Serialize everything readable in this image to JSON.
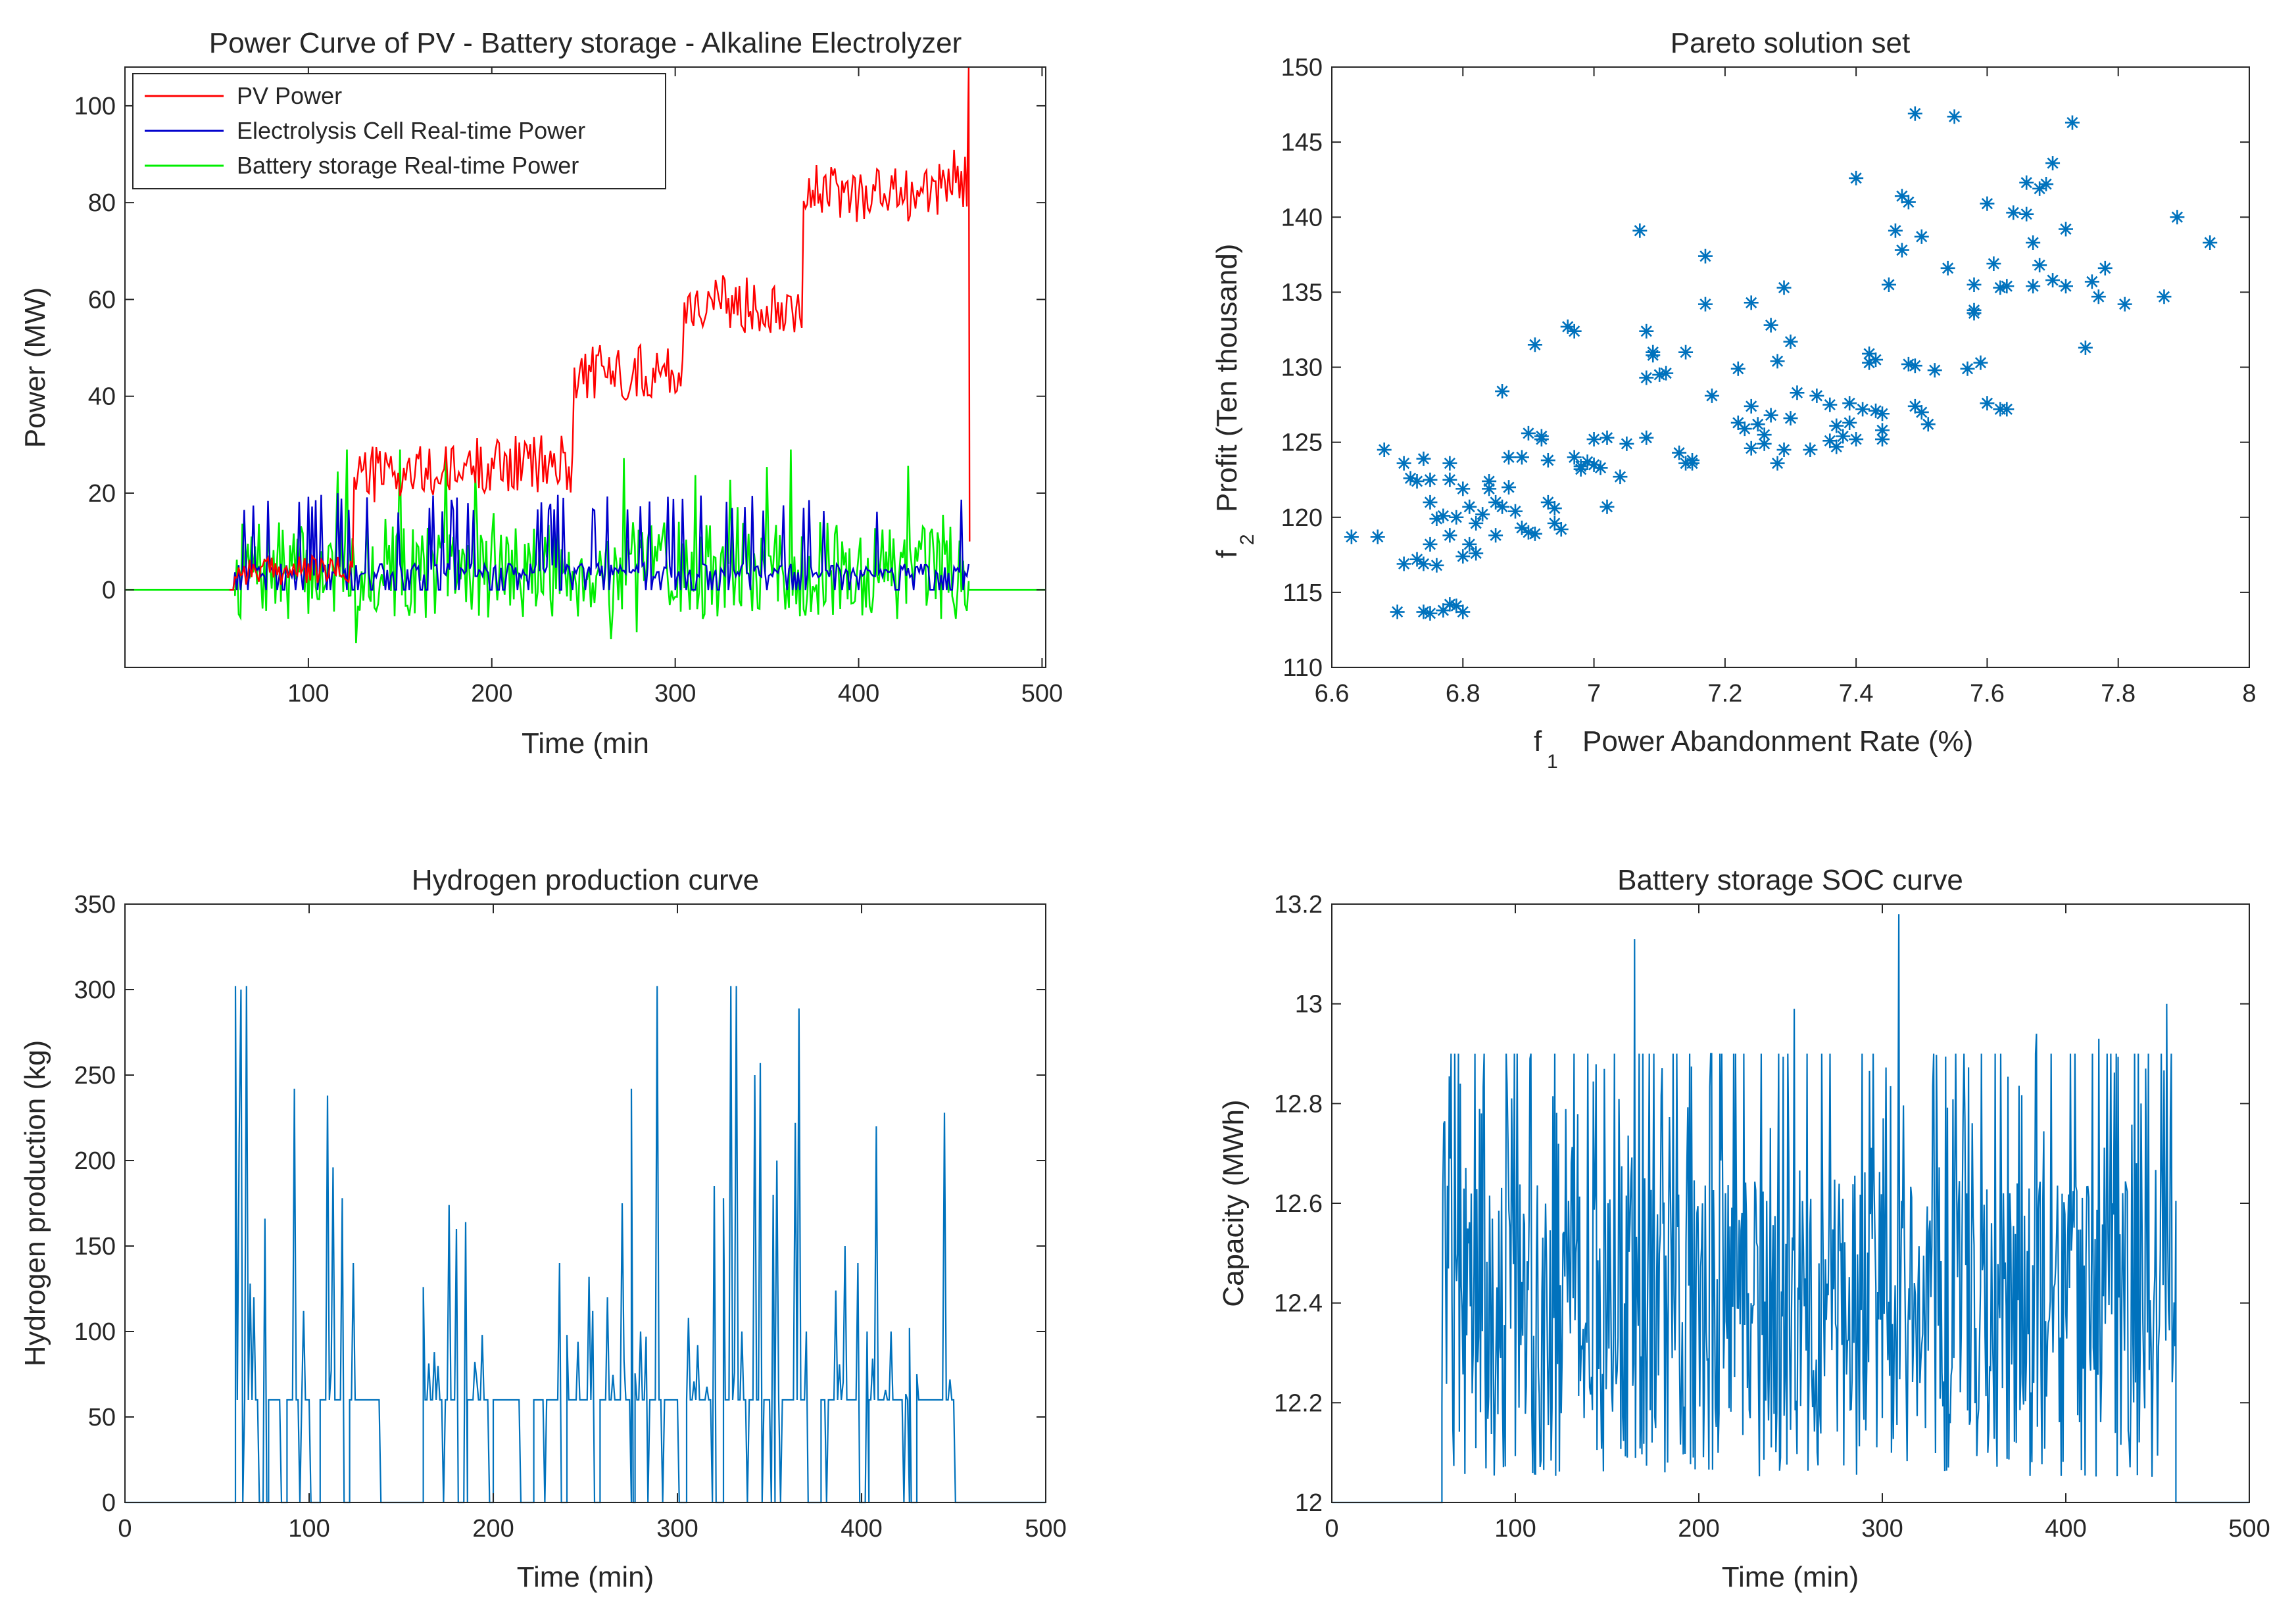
{
  "colors": {
    "pv": "#ff0000",
    "electrolysis": "#0000cc",
    "battery": "#00ee00",
    "matlab_blue": "#0072bd",
    "axis": "#262626"
  },
  "chart_data": [
    {
      "id": "power",
      "type": "line",
      "title": "Power Curve of PV - Battery storage - Alkaline Electrolyzer",
      "xlabel": "Time (min",
      "ylabel": "Power (MW)",
      "xlim": [
        0,
        502
      ],
      "ylim": [
        -16,
        108
      ],
      "xticks": [
        100,
        200,
        300,
        400,
        500
      ],
      "yticks": [
        0,
        20,
        40,
        60,
        80,
        100
      ],
      "legend": {
        "position": "top-left",
        "entries": [
          "PV Power",
          "Electrolysis Cell Real-time Power",
          "Battery storage Real-time Power"
        ]
      },
      "series": [
        {
          "name": "PV Power",
          "color": "#ff0000",
          "levels": [
            [
              57,
              0
            ],
            [
              60,
              4
            ],
            [
              125,
              24
            ],
            [
              185,
              26
            ],
            [
              245,
              45
            ],
            [
              305,
              59
            ],
            [
              370,
              82
            ],
            [
              430,
              82
            ],
            [
              445,
              85
            ],
            [
              459,
              85
            ]
          ],
          "noise": 6,
          "spike": [
            460,
            108
          ]
        },
        {
          "name": "Electrolysis Cell Real-time Power",
          "color": "#0000cc",
          "range": [
            57,
            460
          ],
          "base": 4,
          "high": 20,
          "probability": 0.12
        },
        {
          "name": "Battery storage Real-time Power",
          "color": "#00ee00",
          "range": [
            60,
            460
          ],
          "mean": 4,
          "spread": 10,
          "min": -16,
          "max": 29
        }
      ]
    },
    {
      "id": "pareto",
      "type": "scatter",
      "title": "Pareto solution set",
      "xlabel": "f",
      "xlabel_sub": "1",
      "xlabel_rest": "Power Abandonment Rate (%)",
      "ylabel": "f",
      "ylabel_sub": "2",
      "ylabel_rest": "Profit (Ten thousand)",
      "xlim": [
        6.6,
        8
      ],
      "ylim": [
        110,
        150
      ],
      "xticks": [
        6.6,
        6.8,
        7,
        7.2,
        7.4,
        7.6,
        7.8,
        8
      ],
      "yticks": [
        110,
        115,
        120,
        125,
        130,
        135,
        140,
        145,
        150
      ],
      "marker": "*",
      "points": [
        [
          6.63,
          118.7
        ],
        [
          6.67,
          118.7
        ],
        [
          6.68,
          124.5
        ],
        [
          6.7,
          113.7
        ],
        [
          6.71,
          116.9
        ],
        [
          6.71,
          123.6
        ],
        [
          6.72,
          122.6
        ],
        [
          6.73,
          122.4
        ],
        [
          6.73,
          117.2
        ],
        [
          6.74,
          113.7
        ],
        [
          6.74,
          116.9
        ],
        [
          6.74,
          123.9
        ],
        [
          6.75,
          113.6
        ],
        [
          6.75,
          118.2
        ],
        [
          6.75,
          121.0
        ],
        [
          6.75,
          122.5
        ],
        [
          6.76,
          116.8
        ],
        [
          6.76,
          119.9
        ],
        [
          6.77,
          113.8
        ],
        [
          6.77,
          120.1
        ],
        [
          6.78,
          114.2
        ],
        [
          6.78,
          118.8
        ],
        [
          6.78,
          122.5
        ],
        [
          6.78,
          123.6
        ],
        [
          6.79,
          114.1
        ],
        [
          6.79,
          120.0
        ],
        [
          6.8,
          117.4
        ],
        [
          6.8,
          121.9
        ],
        [
          6.8,
          113.7
        ],
        [
          6.81,
          120.7
        ],
        [
          6.81,
          118.2
        ],
        [
          6.82,
          117.6
        ],
        [
          6.82,
          119.6
        ],
        [
          6.83,
          120.2
        ],
        [
          6.84,
          121.9
        ],
        [
          6.84,
          122.4
        ],
        [
          6.85,
          118.8
        ],
        [
          6.85,
          121.0
        ],
        [
          6.86,
          120.7
        ],
        [
          6.86,
          128.4
        ],
        [
          6.87,
          122.0
        ],
        [
          6.87,
          124.0
        ],
        [
          6.88,
          120.4
        ],
        [
          6.89,
          119.3
        ],
        [
          6.89,
          124.0
        ],
        [
          6.9,
          119.0
        ],
        [
          6.9,
          125.6
        ],
        [
          6.91,
          118.9
        ],
        [
          6.91,
          131.5
        ],
        [
          6.92,
          125.4
        ],
        [
          6.92,
          125.2
        ],
        [
          6.93,
          123.8
        ],
        [
          6.93,
          121.0
        ],
        [
          6.94,
          119.6
        ],
        [
          6.94,
          120.6
        ],
        [
          6.95,
          119.2
        ],
        [
          6.96,
          132.7
        ],
        [
          6.97,
          132.4
        ],
        [
          6.97,
          124.0
        ],
        [
          6.98,
          123.4
        ],
        [
          6.98,
          123.2
        ],
        [
          6.99,
          123.7
        ],
        [
          7.0,
          123.5
        ],
        [
          7.0,
          125.2
        ],
        [
          7.01,
          123.3
        ],
        [
          7.02,
          125.3
        ],
        [
          7.02,
          120.7
        ],
        [
          7.04,
          122.7
        ],
        [
          7.05,
          124.9
        ],
        [
          7.07,
          139.1
        ],
        [
          7.08,
          125.3
        ],
        [
          7.08,
          132.4
        ],
        [
          7.08,
          129.3
        ],
        [
          7.09,
          130.8
        ],
        [
          7.09,
          131.0
        ],
        [
          7.1,
          129.5
        ],
        [
          7.11,
          129.6
        ],
        [
          7.13,
          124.3
        ],
        [
          7.14,
          123.6
        ],
        [
          7.14,
          131.0
        ],
        [
          7.15,
          123.6
        ],
        [
          7.15,
          123.8
        ],
        [
          7.17,
          137.4
        ],
        [
          7.17,
          134.2
        ],
        [
          7.18,
          128.1
        ],
        [
          7.22,
          129.9
        ],
        [
          7.22,
          126.3
        ],
        [
          7.23,
          125.9
        ],
        [
          7.24,
          124.6
        ],
        [
          7.24,
          134.3
        ],
        [
          7.24,
          127.4
        ],
        [
          7.25,
          126.2
        ],
        [
          7.26,
          125.5
        ],
        [
          7.26,
          124.9
        ],
        [
          7.27,
          132.8
        ],
        [
          7.27,
          126.8
        ],
        [
          7.28,
          130.4
        ],
        [
          7.28,
          123.6
        ],
        [
          7.29,
          135.3
        ],
        [
          7.29,
          124.5
        ],
        [
          7.3,
          131.7
        ],
        [
          7.3,
          126.6
        ],
        [
          7.31,
          128.3
        ],
        [
          7.33,
          124.5
        ],
        [
          7.34,
          128.1
        ],
        [
          7.36,
          125.1
        ],
        [
          7.36,
          127.5
        ],
        [
          7.37,
          126.1
        ],
        [
          7.37,
          124.7
        ],
        [
          7.38,
          125.4
        ],
        [
          7.39,
          127.6
        ],
        [
          7.39,
          126.3
        ],
        [
          7.4,
          125.2
        ],
        [
          7.4,
          142.6
        ],
        [
          7.41,
          127.2
        ],
        [
          7.42,
          130.9
        ],
        [
          7.42,
          130.3
        ],
        [
          7.43,
          130.5
        ],
        [
          7.43,
          127.1
        ],
        [
          7.44,
          126.9
        ],
        [
          7.44,
          125.8
        ],
        [
          7.44,
          125.2
        ],
        [
          7.45,
          135.5
        ],
        [
          7.46,
          139.1
        ],
        [
          7.47,
          141.4
        ],
        [
          7.47,
          137.8
        ],
        [
          7.48,
          141.0
        ],
        [
          7.48,
          130.2
        ],
        [
          7.49,
          130.1
        ],
        [
          7.49,
          127.4
        ],
        [
          7.49,
          146.9
        ],
        [
          7.5,
          138.7
        ],
        [
          7.5,
          127.0
        ],
        [
          7.51,
          126.2
        ],
        [
          7.52,
          129.8
        ],
        [
          7.54,
          136.6
        ],
        [
          7.55,
          146.7
        ],
        [
          7.57,
          129.9
        ],
        [
          7.58,
          133.8
        ],
        [
          7.58,
          133.6
        ],
        [
          7.58,
          135.5
        ],
        [
          7.59,
          130.3
        ],
        [
          7.6,
          127.6
        ],
        [
          7.6,
          140.9
        ],
        [
          7.61,
          136.9
        ],
        [
          7.62,
          127.2
        ],
        [
          7.62,
          135.3
        ],
        [
          7.63,
          135.4
        ],
        [
          7.63,
          127.2
        ],
        [
          7.64,
          140.3
        ],
        [
          7.66,
          140.2
        ],
        [
          7.66,
          142.3
        ],
        [
          7.67,
          138.3
        ],
        [
          7.67,
          135.4
        ],
        [
          7.68,
          136.8
        ],
        [
          7.68,
          141.9
        ],
        [
          7.69,
          142.2
        ],
        [
          7.7,
          143.6
        ],
        [
          7.7,
          135.8
        ],
        [
          7.72,
          139.2
        ],
        [
          7.72,
          135.4
        ],
        [
          7.73,
          146.3
        ],
        [
          7.75,
          131.3
        ],
        [
          7.76,
          135.7
        ],
        [
          7.77,
          134.7
        ],
        [
          7.78,
          136.6
        ],
        [
          7.81,
          134.2
        ],
        [
          7.87,
          134.7
        ],
        [
          7.89,
          140.0
        ],
        [
          7.94,
          138.3
        ]
      ]
    },
    {
      "id": "hydrogen",
      "type": "line",
      "title": "Hydrogen production curve",
      "xlabel": "Time (min)",
      "ylabel": "Hydrogen production (kg)",
      "xlim": [
        0,
        500
      ],
      "ylim": [
        0,
        350
      ],
      "xticks": [
        0,
        100,
        200,
        300,
        400,
        500
      ],
      "yticks": [
        0,
        50,
        100,
        150,
        200,
        250,
        300,
        350
      ],
      "color": "#0072bd",
      "active_intervals": [
        [
          60,
          72
        ],
        [
          78,
          84
        ],
        [
          88,
          100
        ],
        [
          106,
          118
        ],
        [
          122,
          138
        ],
        [
          162,
          180
        ],
        [
          186,
          197
        ],
        [
          200,
          214
        ],
        [
          222,
          236
        ],
        [
          240,
          254
        ],
        [
          258,
          274
        ],
        [
          277,
          300
        ],
        [
          305,
          318
        ],
        [
          325,
          350
        ],
        [
          353,
          370
        ],
        [
          378,
          398
        ],
        [
          404,
          425
        ],
        [
          430,
          450
        ]
      ],
      "plateau": 60,
      "peaks": [
        [
          60,
          302
        ],
        [
          62,
          210
        ],
        [
          63,
          300
        ],
        [
          66,
          302
        ],
        [
          68,
          128
        ],
        [
          70,
          120
        ],
        [
          76,
          166
        ],
        [
          92,
          242
        ],
        [
          97,
          112
        ],
        [
          110,
          238
        ],
        [
          113,
          196
        ],
        [
          118,
          178
        ],
        [
          124,
          140
        ],
        [
          162,
          126
        ],
        [
          168,
          88
        ],
        [
          176,
          174
        ],
        [
          180,
          160
        ],
        [
          185,
          164
        ],
        [
          194,
          98
        ],
        [
          236,
          140
        ],
        [
          240,
          98
        ],
        [
          246,
          94
        ],
        [
          252,
          132
        ],
        [
          254,
          112
        ],
        [
          262,
          120
        ],
        [
          270,
          175
        ],
        [
          275,
          242
        ],
        [
          280,
          100
        ],
        [
          283,
          97
        ],
        [
          289,
          302
        ],
        [
          306,
          108
        ],
        [
          311,
          92
        ],
        [
          320,
          185
        ],
        [
          325,
          178
        ],
        [
          329,
          302
        ],
        [
          332,
          302
        ],
        [
          335,
          100
        ],
        [
          342,
          250
        ],
        [
          345,
          257
        ],
        [
          352,
          180
        ],
        [
          354,
          200
        ],
        [
          364,
          222
        ],
        [
          366,
          289
        ],
        [
          370,
          100
        ],
        [
          386,
          124
        ],
        [
          391,
          150
        ],
        [
          398,
          140
        ],
        [
          403,
          100
        ],
        [
          408,
          220
        ],
        [
          416,
          100
        ],
        [
          426,
          102
        ],
        [
          430,
          75
        ],
        [
          445,
          228
        ],
        [
          448,
          72
        ]
      ]
    },
    {
      "id": "soc",
      "type": "line",
      "title": "Battery storage SOC curve",
      "xlabel": "Time (min)",
      "ylabel": "Capacity (MWh)",
      "xlim": [
        0,
        500
      ],
      "ylim": [
        12,
        13.2
      ],
      "xticks": [
        0,
        100,
        200,
        300,
        400,
        500
      ],
      "yticks": [
        12,
        12.2,
        12.4,
        12.6,
        12.8,
        13,
        13.2
      ],
      "color": "#0072bd",
      "range": [
        60,
        460
      ],
      "base": 12,
      "mean": 12.35,
      "spread": 0.3,
      "peaks": [
        [
          61,
          12.76
        ],
        [
          70,
          12.84
        ],
        [
          108,
          12.89
        ],
        [
          165,
          13.13
        ],
        [
          252,
          12.99
        ],
        [
          309,
          13.18
        ],
        [
          384,
          12.94
        ],
        [
          418,
          12.93
        ],
        [
          441,
          12.8
        ],
        [
          455,
          13.0
        ]
      ]
    }
  ]
}
